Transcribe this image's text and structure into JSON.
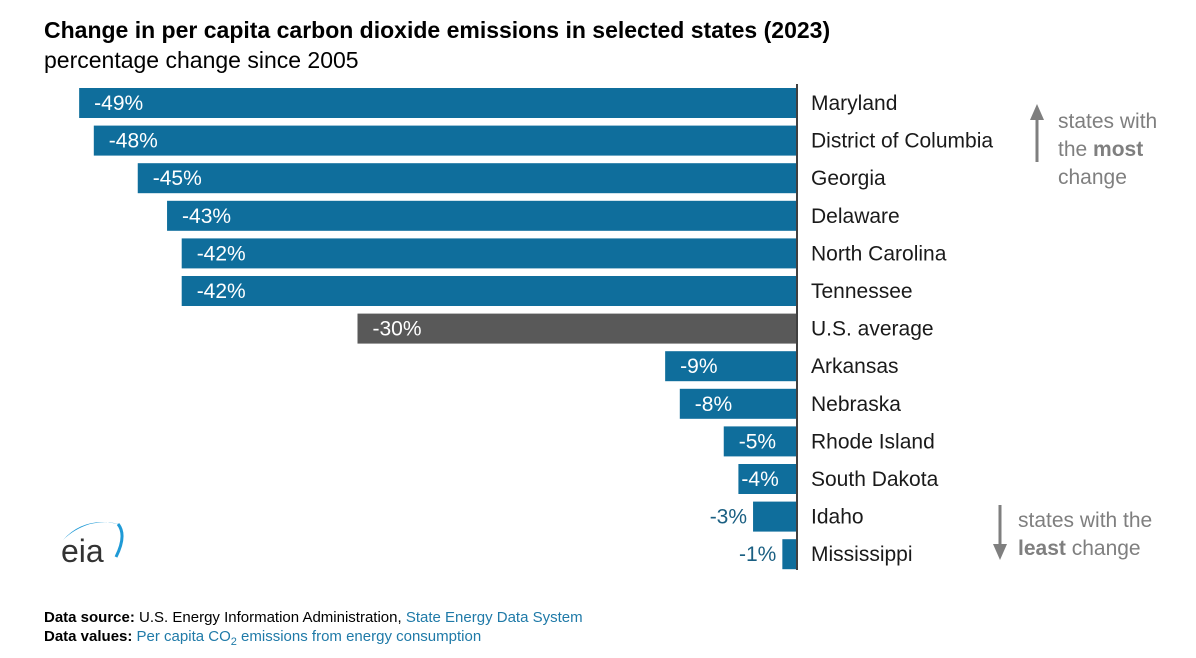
{
  "title": "Change in per capita carbon dioxide emissions in selected states (2023)",
  "subtitle": "percentage change since 2005",
  "chart_data": {
    "type": "bar",
    "orientation": "horizontal",
    "title": "Change in per capita carbon dioxide emissions in selected states (2023)",
    "subtitle": "percentage change since 2005",
    "categories": [
      "Maryland",
      "District of Columbia",
      "Georgia",
      "Delaware",
      "North Carolina",
      "Tennessee",
      "U.S. average",
      "Arkansas",
      "Nebraska",
      "Rhode Island",
      "South Dakota",
      "Idaho",
      "Mississippi"
    ],
    "values": [
      -49,
      -48,
      -45,
      -43,
      -42,
      -42,
      -30,
      -9,
      -8,
      -5,
      -4,
      -3,
      -1
    ],
    "labels": [
      "-49%",
      "-48%",
      "-45%",
      "-43%",
      "-42%",
      "-42%",
      "-30%",
      "-9%",
      "-8%",
      "-5%",
      "-4%",
      "-3%",
      "-1%"
    ],
    "xlim": [
      -52,
      0
    ],
    "grid": false,
    "colors": {
      "state": "#0f6e9c",
      "average": "#595959",
      "outside_label": "#1a5f82"
    }
  },
  "annotations": {
    "most": {
      "line1": "states with",
      "line2a": "the ",
      "line2b": "most",
      "line3": "change"
    },
    "least": {
      "line1": "states with the",
      "line2a": "least",
      "line2b": " change"
    }
  },
  "logo": "eia",
  "footer": {
    "source_label": "Data source:",
    "source_text": "U.S. Energy Information Administration,",
    "source_link": "State Energy Data System",
    "values_label": "Data values:",
    "values_pre": "Per capita CO",
    "values_sub": "2",
    "values_post": " emissions from energy consumption"
  }
}
